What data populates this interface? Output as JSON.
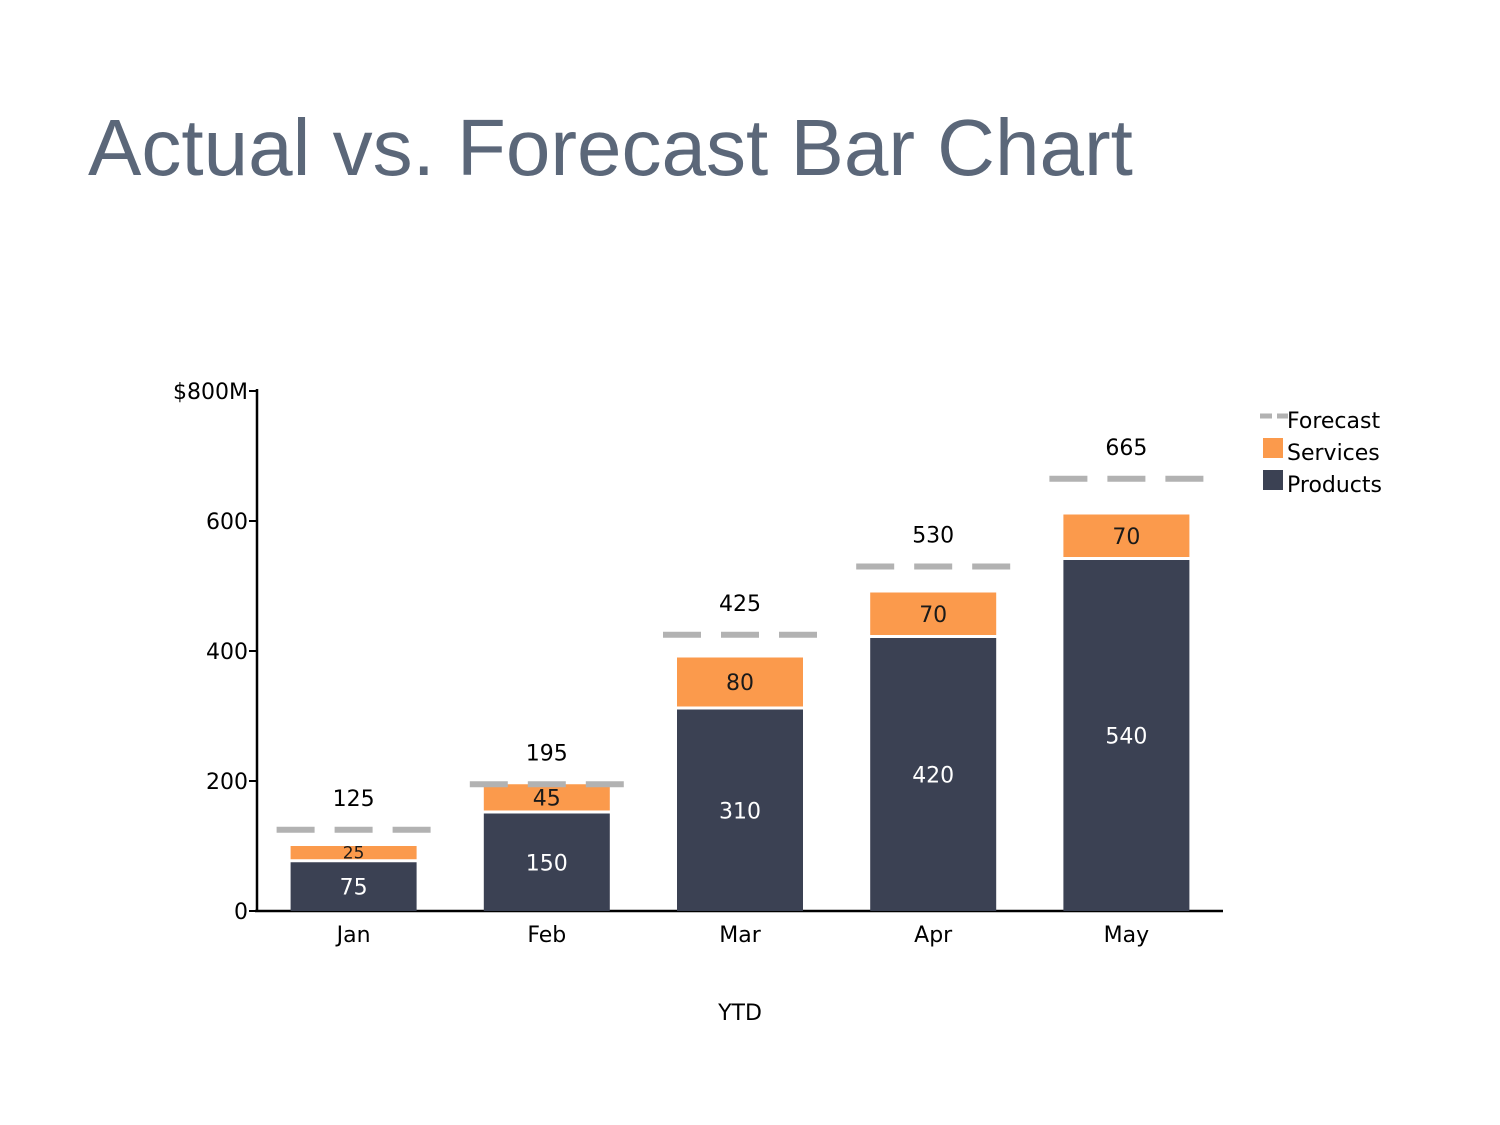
{
  "slide": {
    "title": "Actual vs. Forecast Bar Chart"
  },
  "chart_data": {
    "type": "bar",
    "stacked": true,
    "categories": [
      "Jan",
      "Feb",
      "Mar",
      "Apr",
      "May"
    ],
    "series": [
      {
        "name": "Products",
        "values": [
          75,
          150,
          310,
          420,
          540
        ],
        "color": "#3b4153"
      },
      {
        "name": "Services",
        "values": [
          25,
          45,
          80,
          70,
          70
        ],
        "color": "#fb9a4c"
      }
    ],
    "forecast": {
      "name": "Forecast",
      "values": [
        125,
        195,
        425,
        530,
        665
      ],
      "color": "#b2b2b2"
    },
    "xlabel": "YTD",
    "ylim": [
      0,
      800
    ],
    "yticks": [
      0,
      200,
      400,
      600,
      800
    ],
    "ytick_labels": [
      "0",
      "200",
      "400",
      "600",
      "$800M"
    ],
    "grid": false,
    "legend": {
      "position": "top-right",
      "entries": [
        "Forecast",
        "Services",
        "Products"
      ]
    }
  }
}
